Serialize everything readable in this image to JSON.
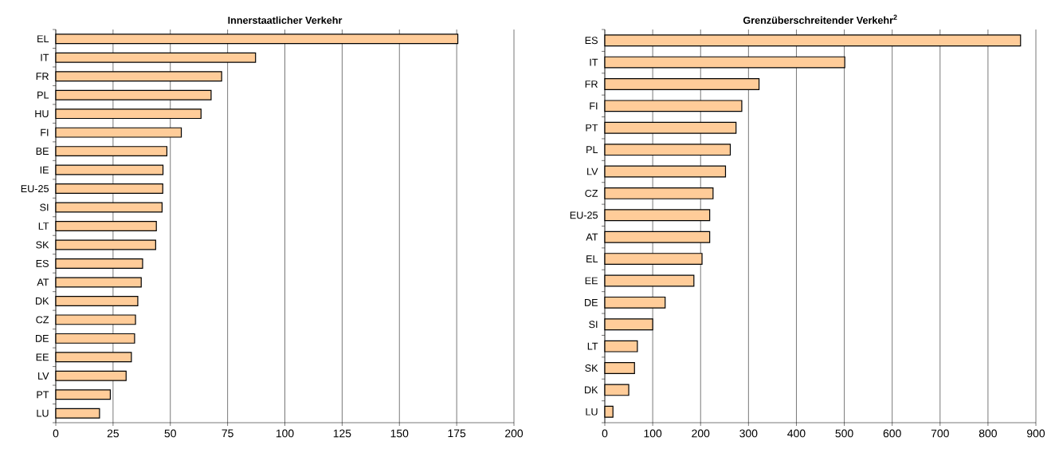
{
  "chart_data": [
    {
      "type": "bar",
      "orientation": "horizontal",
      "title": "Innerstaatlicher Verkehr",
      "categories": [
        "EL",
        "IT",
        "FR",
        "PL",
        "HU",
        "FI",
        "BE",
        "IE",
        "EU-25",
        "SI",
        "LT",
        "SK",
        "ES",
        "AT",
        "DK",
        "CZ",
        "DE",
        "EE",
        "LV",
        "PT",
        "LU"
      ],
      "values": [
        175.5,
        87.2,
        72.4,
        67.8,
        63.4,
        54.8,
        48.5,
        46.8,
        46.7,
        46.4,
        43.9,
        43.6,
        37.9,
        37.3,
        35.8,
        34.8,
        34.4,
        33.0,
        30.7,
        23.8,
        19.1
      ],
      "color": "#ffcc99",
      "xlim": [
        0,
        200
      ],
      "xticks": [
        0,
        25,
        50,
        75,
        100,
        125,
        150,
        175,
        200
      ],
      "grid": "x"
    },
    {
      "type": "bar",
      "orientation": "horizontal",
      "title": "Grenzüberschreitender Verkehr$^{2}$",
      "categories": [
        "ES",
        "IT",
        "FR",
        "FI",
        "PT",
        "PL",
        "LV",
        "CZ",
        "EU-25",
        "AT",
        "EL",
        "EE",
        "DE",
        "SI",
        "LT",
        "SK",
        "DK",
        "LU"
      ],
      "values": [
        868,
        501,
        322,
        286,
        274,
        262,
        252,
        226,
        219,
        219,
        203,
        186,
        126,
        100,
        68,
        62,
        50,
        17
      ],
      "color": "#ffcc99",
      "xlim": [
        0,
        900
      ],
      "xticks": [
        0,
        100,
        200,
        300,
        400,
        500,
        600,
        700,
        800,
        900
      ],
      "grid": "x"
    }
  ]
}
